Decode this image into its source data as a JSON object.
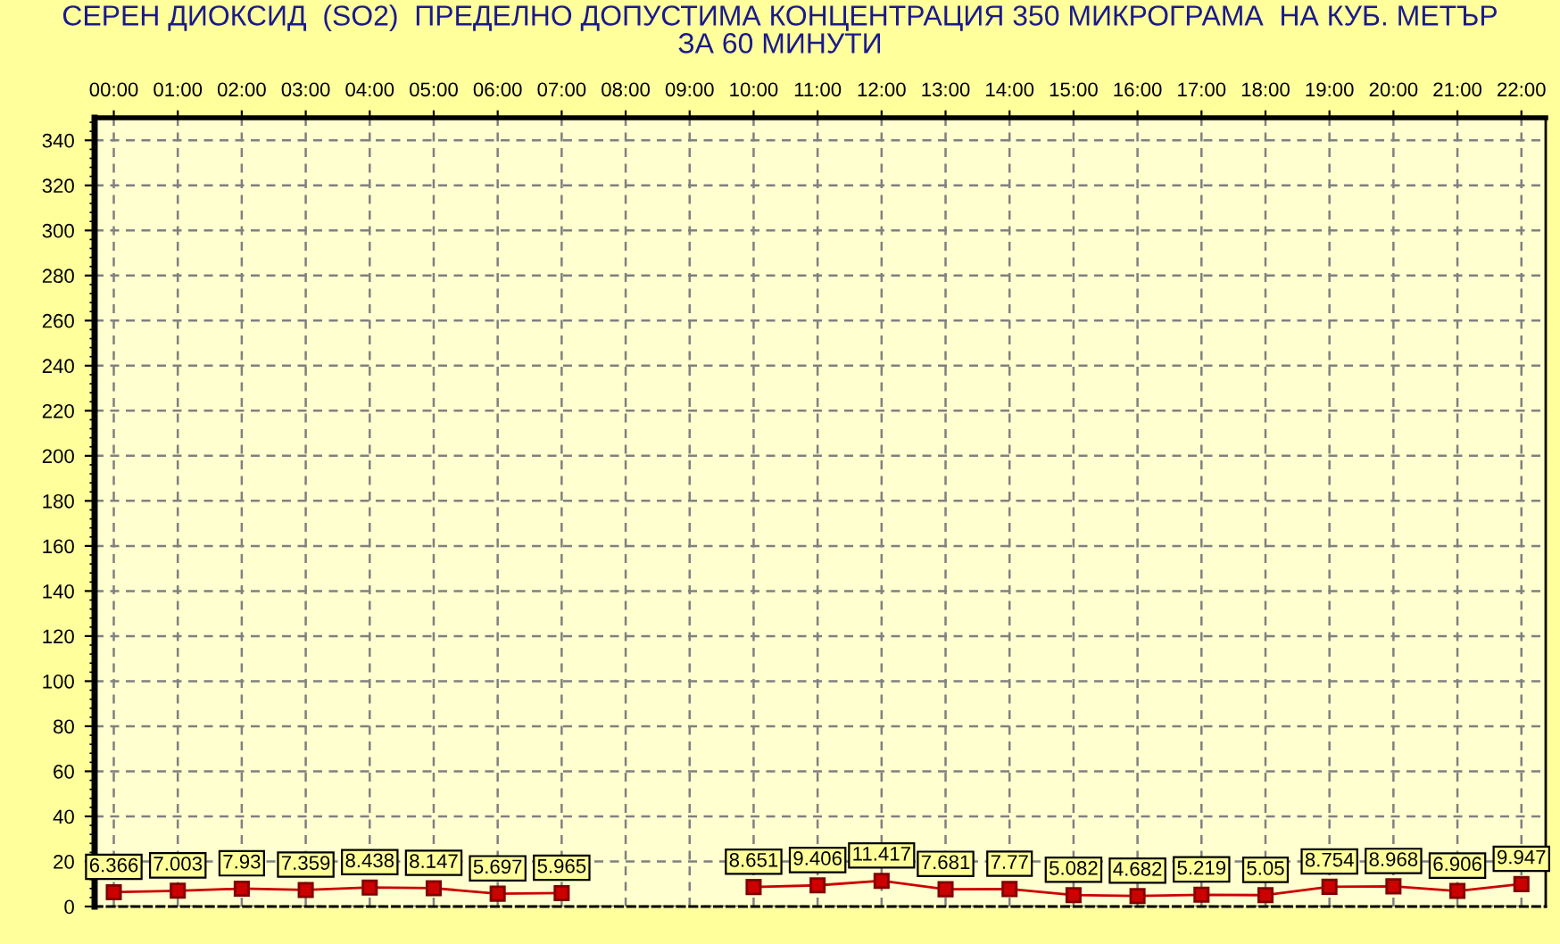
{
  "chart_data": {
    "type": "line",
    "title": "СЕРЕН ДИОКСИД  (SO2)  ПРЕДЕЛНО ДОПУСТИМА КОНЦЕНТРАЦИЯ 350 МИКРОГРАМА  НА КУБ. МЕТЪР\nЗА 60 МИНУТИ",
    "categories": [
      "00:00",
      "01:00",
      "02:00",
      "03:00",
      "04:00",
      "05:00",
      "06:00",
      "07:00",
      "08:00",
      "09:00",
      "10:00",
      "11:00",
      "12:00",
      "13:00",
      "14:00",
      "15:00",
      "16:00",
      "17:00",
      "18:00",
      "19:00",
      "20:00",
      "21:00",
      "22:00"
    ],
    "series": [
      {
        "color": "#cc0000",
        "values": [
          6.366,
          7.003,
          7.93,
          7.359,
          8.438,
          8.147,
          5.697,
          5.965,
          null,
          null,
          8.651,
          9.406,
          11.417,
          7.681,
          7.77,
          5.082,
          4.682,
          5.219,
          5.05,
          8.754,
          8.968,
          6.906,
          9.947
        ]
      }
    ],
    "ylim": [
      0,
      350
    ],
    "yticks": [
      0,
      20,
      40,
      60,
      80,
      100,
      120,
      140,
      160,
      180,
      200,
      220,
      240,
      260,
      280,
      300,
      320,
      340
    ],
    "grid": true,
    "marker": "square",
    "line_style": "solid",
    "data_labels": true
  }
}
